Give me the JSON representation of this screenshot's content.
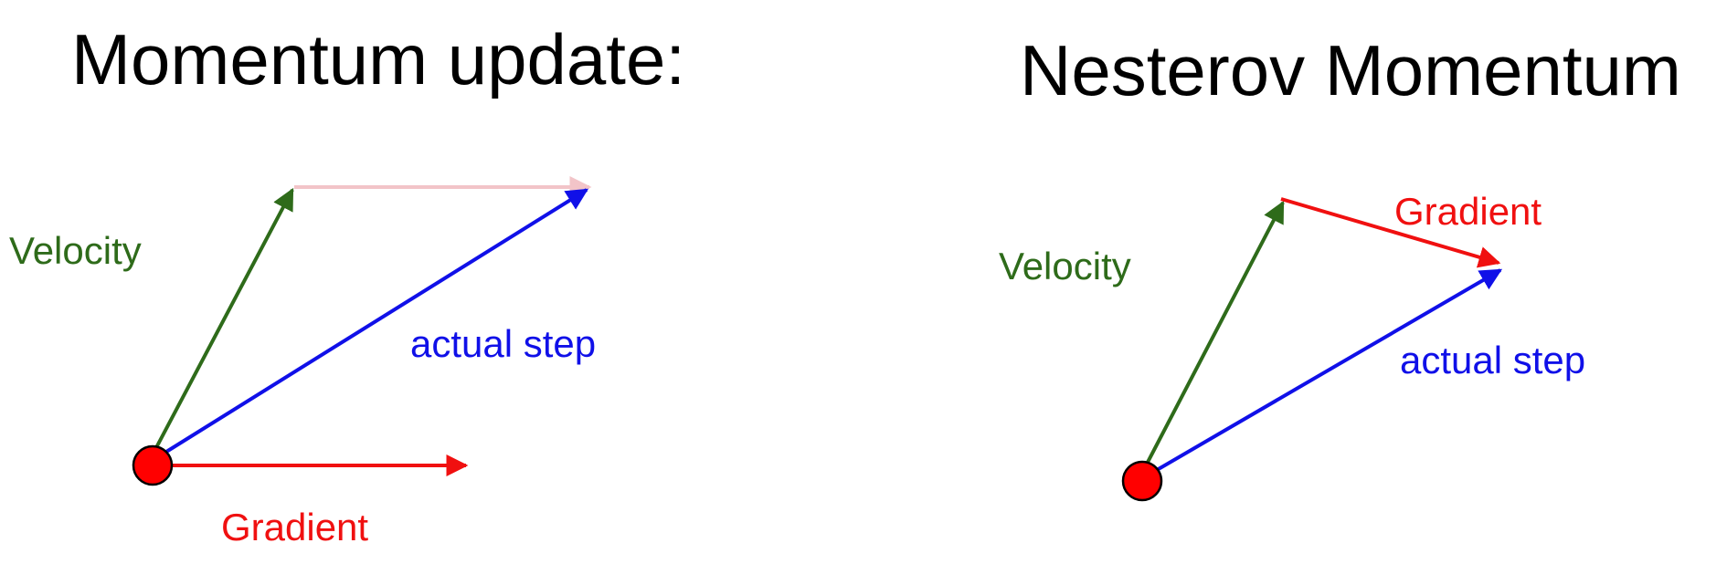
{
  "panels": {
    "left": {
      "title": "Momentum update:",
      "velocity_label": "Velocity",
      "step_label": "actual step",
      "gradient_label": "Gradient"
    },
    "right": {
      "title": "Nesterov Momentum",
      "velocity_label": "Velocity",
      "gradient_label": "Gradient",
      "step_label": "actual step"
    }
  },
  "colors": {
    "velocity": "#2e6b1a",
    "gradient": "#f01010",
    "actual_step": "#1010e8",
    "ghost_gradient": "#f2c4c8",
    "start_point": "#ff0000"
  }
}
